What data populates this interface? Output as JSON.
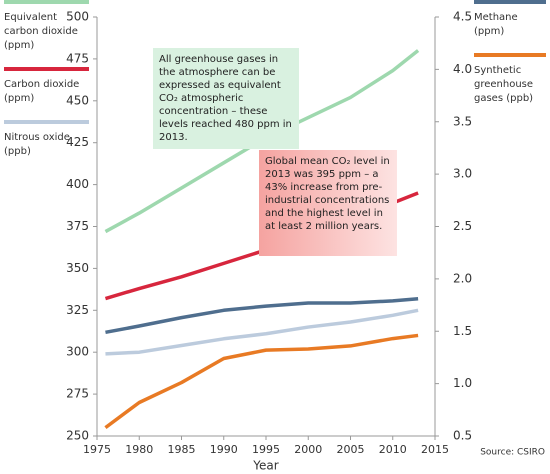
{
  "chart_data": {
    "type": "line",
    "x_label": "Year",
    "source": "Source: CSIRO",
    "x": [
      1976,
      1980,
      1985,
      1990,
      1995,
      2000,
      2005,
      2010,
      2013
    ],
    "xlim": [
      1975,
      2015
    ],
    "xticks": [
      1975,
      1980,
      1985,
      1990,
      1995,
      2000,
      2005,
      2010,
      2015
    ],
    "ylim": [
      250,
      500
    ],
    "yticks": [
      250,
      275,
      300,
      325,
      350,
      375,
      400,
      425,
      450,
      475,
      500
    ],
    "y2lim": [
      0.5,
      4.5
    ],
    "y2ticks": [
      0.5,
      {
        "value": 1,
        "label": "1.0"
      },
      1.5,
      {
        "value": 2,
        "label": "2.0"
      },
      2.5,
      {
        "value": 3,
        "label": "3.0"
      },
      3.5,
      {
        "value": 4,
        "label": "4.0"
      },
      4.5
    ],
    "series": [
      {
        "name": "Equivalent carbon dioxide (ppm)",
        "color": "#9ed8ae",
        "values": [
          372,
          383,
          398,
          413,
          428,
          440,
          452,
          468,
          480
        ]
      },
      {
        "name": "Carbon dioxide (ppm)",
        "color": "#d7263d",
        "values": [
          332,
          338,
          345,
          353,
          361,
          369,
          379,
          389,
          395
        ]
      },
      {
        "name": "Nitrous oxide (ppb)",
        "color": "#bccbdd",
        "values": [
          299,
          300,
          304,
          308,
          311,
          315,
          318,
          322,
          325
        ]
      },
      {
        "name": "Methane (ppm)",
        "color": "#4f6e8e",
        "axis": "y2",
        "values": [
          1.49,
          1.55,
          1.63,
          1.7,
          1.74,
          1.77,
          1.77,
          1.79,
          1.81
        ]
      },
      {
        "name": "Synthetic greenhouse gases (ppb)",
        "color": "#e87a24",
        "axis": "y2",
        "values": [
          0.58,
          0.82,
          1.01,
          1.24,
          1.32,
          1.33,
          1.36,
          1.43,
          1.46
        ]
      }
    ],
    "annotations": [
      "All greenhouse gases in the atmosphere can be expressed as equivalent CO₂ atmospheric concentration – these levels reached 480 ppm in 2013.",
      "Global mean CO₂ level in 2013 was 395 ppm – a 43% increase from pre-industrial concentrations and the highest level in at least 2 million years."
    ]
  }
}
